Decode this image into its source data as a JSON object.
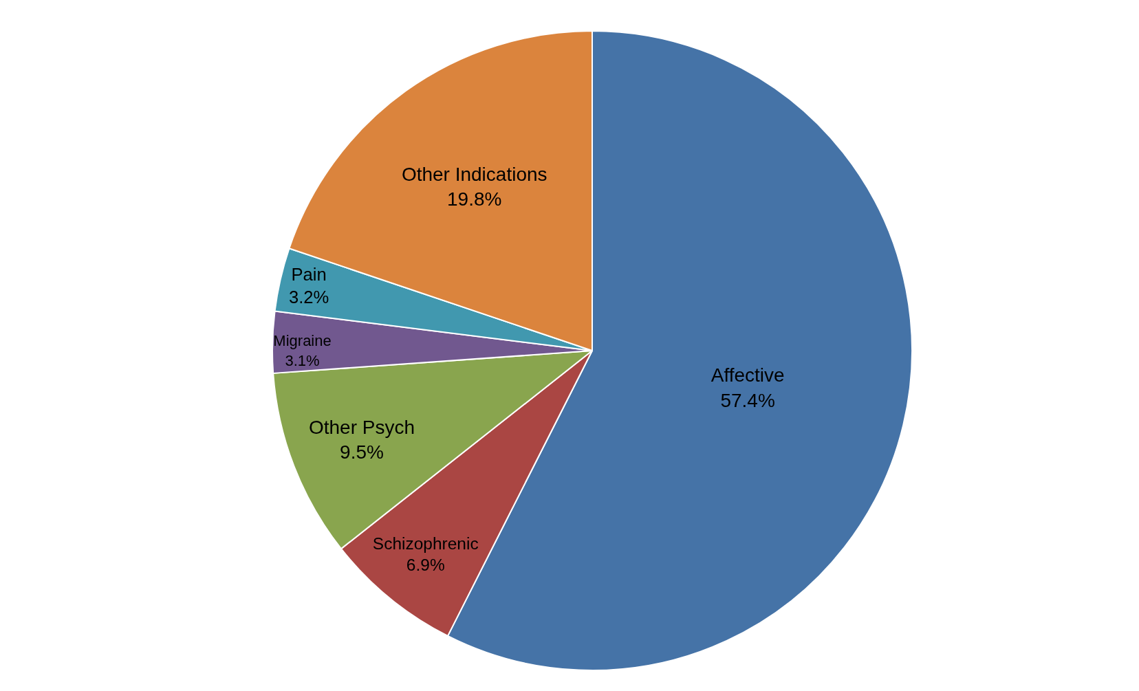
{
  "chart_data": {
    "type": "pie",
    "categories": [
      "Affective",
      "Schizophrenic",
      "Other Psych",
      "Migraine",
      "Pain",
      "Other Indications"
    ],
    "values": [
      57.4,
      6.9,
      9.5,
      3.1,
      3.2,
      19.8
    ],
    "value_labels": [
      "57.4%",
      "6.9%",
      "9.5%",
      "3.1%",
      "3.2%",
      "19.8%"
    ],
    "colors": [
      "#4573a7",
      "#aa4643",
      "#89a54e",
      "#71588f",
      "#4198af",
      "#db843d"
    ],
    "legend": false
  }
}
